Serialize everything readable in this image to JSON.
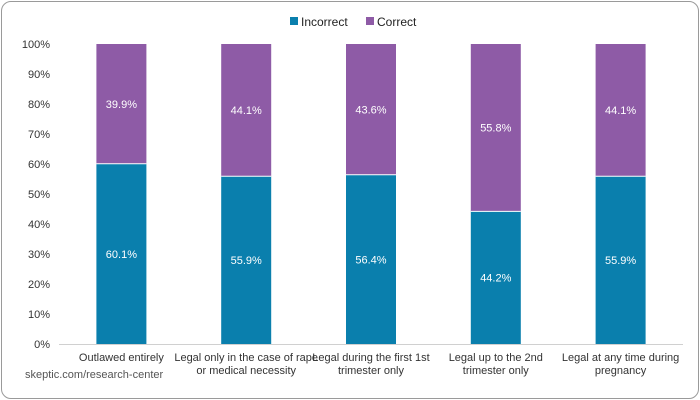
{
  "chart_data": {
    "type": "bar",
    "stacked": true,
    "categories": [
      [
        "Outlawed entirely"
      ],
      [
        "Legal only in the case of rape",
        "or medical necessity"
      ],
      [
        "Legal during the first 1st",
        "trimester only"
      ],
      [
        "Legal up to the 2nd",
        "trimester only"
      ],
      [
        "Legal at any time during",
        "pregnancy"
      ]
    ],
    "series": [
      {
        "name": "Incorrect",
        "color": "#0a7fad",
        "values": [
          60.1,
          55.9,
          56.4,
          44.2,
          55.9
        ]
      },
      {
        "name": "Correct",
        "color": "#8e5ba6",
        "values": [
          39.9,
          44.1,
          43.6,
          55.8,
          44.1
        ]
      }
    ],
    "yticks": [
      "0%",
      "10%",
      "20%",
      "30%",
      "40%",
      "50%",
      "60%",
      "70%",
      "80%",
      "90%",
      "100%"
    ],
    "ylim": [
      0,
      100
    ],
    "legend": "top-center",
    "grid": false,
    "value_suffix": "%"
  },
  "source": "skeptic.com/research-center"
}
